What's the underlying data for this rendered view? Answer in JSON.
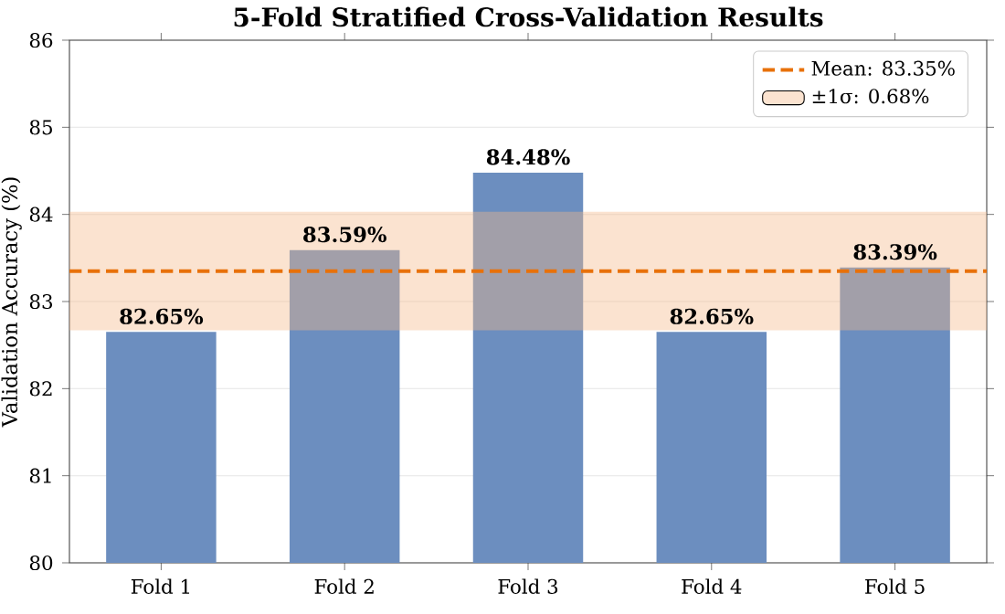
{
  "chart_data": {
    "type": "bar",
    "title": "5-Fold Stratified Cross-Validation Results",
    "ylabel": "Validation Accuracy (%)",
    "categories": [
      "Fold 1",
      "Fold 2",
      "Fold 3",
      "Fold 4",
      "Fold 5"
    ],
    "values": [
      82.65,
      83.59,
      84.48,
      82.65,
      83.39
    ],
    "color": "#6c8ebf",
    "value_labels": [
      "82.65%",
      "83.59%",
      "84.48%",
      "82.65%",
      "83.39%"
    ],
    "ylim": [
      80,
      86
    ],
    "yticks": [
      80,
      81,
      82,
      83,
      84,
      85,
      86
    ],
    "grid": "y",
    "ref_lines": [
      {
        "axis": "y",
        "value": 83.35,
        "label": "Mean: 83.35%",
        "color": "#e8710a",
        "line_style": "dashed"
      }
    ],
    "bands": [
      {
        "axis": "y",
        "from": 82.67,
        "to": 84.03,
        "label": "±1σ: 0.68%",
        "color": "#f5b88a"
      }
    ],
    "legend": "top right"
  }
}
